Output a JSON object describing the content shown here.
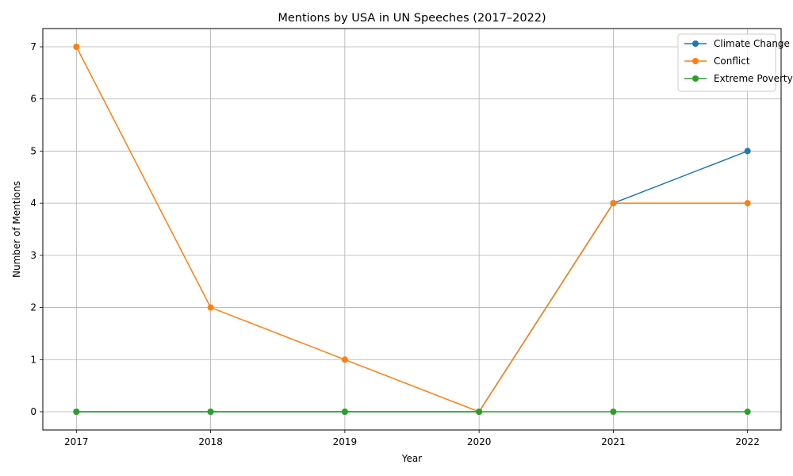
{
  "chart_data": {
    "type": "line",
    "title": "Mentions by USA in UN Speeches (2017–2022)",
    "xlabel": "Year",
    "ylabel": "Number of Mentions",
    "x": [
      "2017",
      "2018",
      "2019",
      "2020",
      "2021",
      "2022"
    ],
    "series": [
      {
        "name": "Climate Change",
        "values": [
          0,
          0,
          0,
          0,
          4,
          5
        ],
        "color": "#1f77b4"
      },
      {
        "name": "Conflict",
        "values": [
          7,
          2,
          1,
          0,
          4,
          4
        ],
        "color": "#ff7f0e"
      },
      {
        "name": "Extreme Poverty",
        "values": [
          0,
          0,
          0,
          0,
          0,
          0
        ],
        "color": "#2ca02c"
      }
    ],
    "yticks": [
      "0",
      "1",
      "2",
      "3",
      "4",
      "5",
      "6",
      "7"
    ],
    "ylim": [
      -0.35,
      7.35
    ],
    "xlim": [
      2016.75,
      2022.25
    ],
    "grid": true,
    "legend_position": "top-right",
    "marker": "circle"
  }
}
